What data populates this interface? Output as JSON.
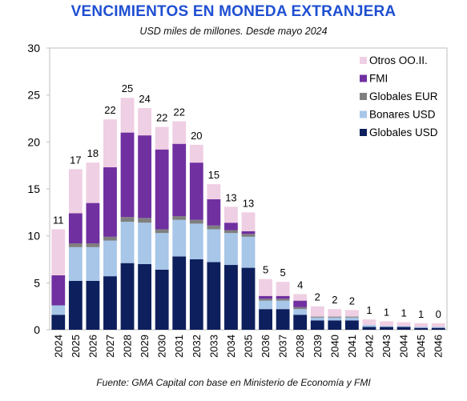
{
  "title": "VENCIMIENTOS EN MONEDA EXTRANJERA",
  "subtitle": "USD miles de millones. Desde mayo 2024",
  "source": "Fuente: GMA Capital con base en Ministerio de Economía y FMI",
  "chart_data": {
    "type": "bar",
    "stacked": true,
    "title": "VENCIMIENTOS EN MONEDA EXTRANJERA",
    "subtitle": "USD miles de millones. Desde mayo 2024",
    "xlabel": "",
    "ylabel": "",
    "ylim": [
      0,
      30
    ],
    "yticks": [
      0,
      5,
      10,
      15,
      20,
      25,
      30
    ],
    "grid": false,
    "legend_position": "top-right",
    "categories": [
      "2024",
      "2025",
      "2026",
      "2027",
      "2028",
      "2029",
      "2030",
      "2031",
      "2032",
      "2033",
      "2034",
      "2035",
      "2036",
      "2037",
      "2038",
      "2039",
      "2040",
      "2041",
      "2042",
      "2043",
      "2044",
      "2045",
      "2046"
    ],
    "series": [
      {
        "name": "Globales USD",
        "color": "#0d1f5c",
        "values": [
          1.6,
          5.2,
          5.2,
          5.7,
          7.1,
          7.0,
          6.4,
          7.8,
          7.5,
          7.2,
          6.9,
          6.6,
          2.2,
          2.2,
          1.6,
          1.0,
          1.0,
          1.0,
          0.3,
          0.3,
          0.3,
          0.2,
          0.2
        ]
      },
      {
        "name": "Bonares USD",
        "color": "#a7c6e8",
        "values": [
          1.0,
          3.6,
          3.6,
          3.8,
          4.4,
          4.4,
          3.9,
          3.9,
          3.8,
          3.5,
          3.4,
          3.3,
          0.9,
          0.9,
          0.6,
          0.3,
          0.3,
          0.3,
          0.2,
          0.1,
          0.1,
          0.1,
          0.1
        ]
      },
      {
        "name": "Globales EUR",
        "color": "#7f7f7f",
        "values": [
          0.0,
          0.4,
          0.4,
          0.4,
          0.5,
          0.5,
          0.4,
          0.4,
          0.4,
          0.4,
          0.3,
          0.3,
          0.2,
          0.2,
          0.2,
          0.1,
          0.1,
          0.1,
          0.0,
          0.0,
          0.0,
          0.0,
          0.0
        ]
      },
      {
        "name": "FMI",
        "color": "#7030a0",
        "values": [
          3.2,
          3.2,
          4.3,
          7.4,
          9.0,
          8.8,
          8.5,
          7.7,
          6.1,
          2.8,
          0.8,
          0.3,
          0.3,
          0.3,
          0.7,
          0.0,
          0.0,
          0.0,
          0.0,
          0.0,
          0.0,
          0.0,
          0.0
        ]
      },
      {
        "name": "Otros OO.II.",
        "color": "#efcfe3",
        "values": [
          4.9,
          4.7,
          4.3,
          5.1,
          3.7,
          2.9,
          2.4,
          2.4,
          1.9,
          1.6,
          1.7,
          2.0,
          1.8,
          1.5,
          0.7,
          1.1,
          0.8,
          0.7,
          0.6,
          0.5,
          0.4,
          0.4,
          0.4
        ]
      }
    ],
    "totals_labels": [
      "11",
      "17",
      "18",
      "22",
      "25",
      "24",
      "22",
      "22",
      "20",
      "15",
      "13",
      "13",
      "5",
      "5",
      "4",
      "2",
      "2",
      "2",
      "1",
      "1",
      "1",
      "1",
      "0"
    ],
    "legend_order": [
      "Otros OO.II.",
      "FMI",
      "Globales EUR",
      "Bonares USD",
      "Globales USD"
    ]
  }
}
